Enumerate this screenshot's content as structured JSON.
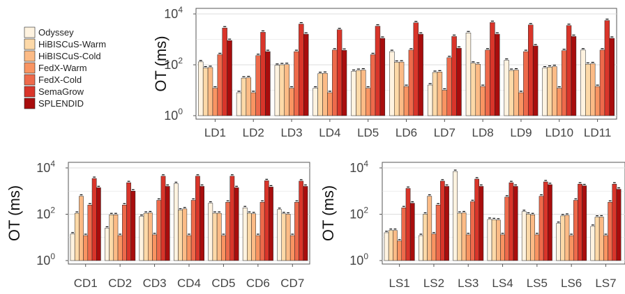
{
  "colors": {
    "Odyssey": "#fff3e0",
    "HiBISCuS-Warm": "#fdd9a8",
    "HiBISCuS-Cold": "#fcbb86",
    "FedX-Warm": "#f99462",
    "FedX-Cold": "#ee6a4b",
    "SemaGrow": "#d9352a",
    "SPLENDID": "#a80d0d"
  },
  "legend": [
    "Odyssey",
    "HiBISCuS-Warm",
    "HiBISCuS-Cold",
    "FedX-Warm",
    "FedX-Cold",
    "SemaGrow",
    "SPLENDID"
  ],
  "chart_data": [
    {
      "type": "bar",
      "ylabel": "OT (ms)",
      "scale": "log10",
      "ylim": [
        1,
        10000
      ],
      "yticks": [
        "10^0",
        "10^2",
        "10^4"
      ],
      "categories": [
        "LD1",
        "LD2",
        "LD3",
        "LD4",
        "LD5",
        "LD6",
        "LD7",
        "LD8",
        "LD9",
        "LD10",
        "LD11"
      ],
      "series": [
        {
          "name": "Odyssey",
          "values": [
            130,
            8,
            95,
            12,
            55,
            330,
            16,
            1800,
            150,
            75,
            380
          ]
        },
        {
          "name": "HiBISCuS-Warm",
          "values": [
            75,
            30,
            100,
            45,
            60,
            125,
            50,
            115,
            60,
            80,
            105
          ]
        },
        {
          "name": "HiBISCuS-Cold",
          "values": [
            78,
            31,
            102,
            46,
            62,
            128,
            52,
            105,
            62,
            85,
            110
          ]
        },
        {
          "name": "FedX-Warm",
          "values": [
            12,
            8,
            12,
            8,
            12,
            14,
            10,
            14,
            8,
            12,
            14
          ]
        },
        {
          "name": "FedX-Cold",
          "values": [
            250,
            230,
            330,
            380,
            250,
            380,
            190,
            380,
            330,
            360,
            380
          ]
        },
        {
          "name": "SemaGrow",
          "values": [
            2800,
            1900,
            4000,
            2400,
            3300,
            4500,
            1300,
            4600,
            3700,
            3500,
            5500
          ]
        },
        {
          "name": "SPLENDID",
          "values": [
            900,
            330,
            1600,
            370,
            1100,
            1600,
            450,
            1600,
            550,
            1300,
            1100
          ]
        }
      ]
    },
    {
      "type": "bar",
      "ylabel": "OT (ms)",
      "scale": "log10",
      "ylim": [
        1,
        10000
      ],
      "yticks": [
        "10^0",
        "10^2",
        "10^4"
      ],
      "categories": [
        "CD1",
        "CD2",
        "CD3",
        "CD4",
        "CD5",
        "CD6",
        "CD7"
      ],
      "series": [
        {
          "name": "Odyssey",
          "values": [
            14,
            25,
            80,
            2100,
            300,
            190,
            160
          ]
        },
        {
          "name": "HiBISCuS-Warm",
          "values": [
            110,
            95,
            110,
            150,
            110,
            110,
            105
          ]
        },
        {
          "name": "HiBISCuS-Cold",
          "values": [
            600,
            95,
            115,
            170,
            110,
            105,
            100
          ]
        },
        {
          "name": "FedX-Warm",
          "values": [
            12,
            12,
            13,
            12,
            12,
            12,
            12
          ]
        },
        {
          "name": "FedX-Cold",
          "values": [
            250,
            250,
            400,
            400,
            330,
            330,
            330
          ]
        },
        {
          "name": "SemaGrow",
          "values": [
            3500,
            2300,
            4400,
            4400,
            4400,
            2800,
            2700
          ]
        },
        {
          "name": "SPLENDID",
          "values": [
            1400,
            1000,
            1600,
            1600,
            1400,
            1500,
            1600
          ]
        }
      ]
    },
    {
      "type": "bar",
      "ylabel": "OT (ms)",
      "scale": "log10",
      "ylim": [
        1,
        10000
      ],
      "yticks": [
        "10^0",
        "10^2",
        "10^4"
      ],
      "categories": [
        "LS1",
        "LS2",
        "LS3",
        "LS4",
        "LS5",
        "LS6",
        "LS7"
      ],
      "series": [
        {
          "name": "Odyssey",
          "values": [
            16,
            12,
            7000,
            60,
            130,
            40,
            30
          ]
        },
        {
          "name": "HiBISCuS-Warm",
          "values": [
            20,
            100,
            110,
            58,
            100,
            85,
            75
          ]
        },
        {
          "name": "HiBISCuS-Cold",
          "values": [
            20,
            600,
            115,
            56,
            95,
            90,
            76
          ]
        },
        {
          "name": "FedX-Warm",
          "values": [
            7,
            14,
            13,
            13,
            13,
            12,
            12
          ]
        },
        {
          "name": "FedX-Cold",
          "values": [
            190,
            250,
            350,
            550,
            600,
            400,
            330
          ]
        },
        {
          "name": "SemaGrow",
          "values": [
            1300,
            2700,
            3300,
            2300,
            2500,
            2000,
            2000
          ]
        },
        {
          "name": "SPLENDID",
          "values": [
            300,
            1600,
            1600,
            1600,
            1900,
            1700,
            1200
          ]
        }
      ]
    }
  ]
}
